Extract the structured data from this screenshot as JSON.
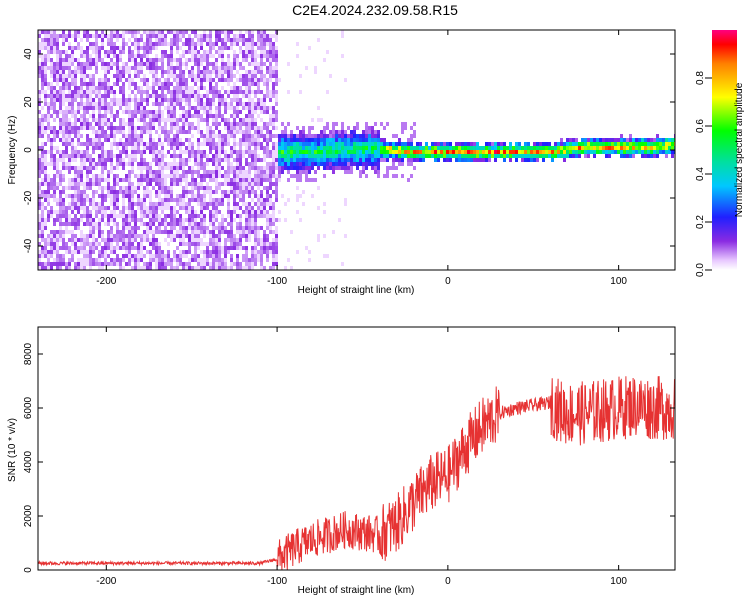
{
  "page_title": "C2E4.2024.232.09.58.R15",
  "chart_data": [
    {
      "type": "heatmap",
      "title": "C2E4.2024.232.09.58.R15",
      "xlabel": "Height of straight line (km)",
      "ylabel": "Frequency (Hz)",
      "xlim": [
        -240,
        133
      ],
      "ylim": [
        -50,
        50
      ],
      "xticks": [
        -200,
        -100,
        0,
        100
      ],
      "yticks": [
        -40,
        -20,
        0,
        20,
        40
      ],
      "colorbar": {
        "label": "Normalized spectral amplitude",
        "ticks": [
          0.0,
          0.2,
          0.4,
          0.6,
          0.8
        ],
        "range": [
          0,
          1
        ]
      },
      "ridge": {
        "x": [
          -100,
          -80,
          -60,
          -40,
          -20,
          0,
          20,
          40,
          60,
          70,
          80,
          100,
          120,
          133
        ],
        "freq": [
          0,
          0,
          1,
          1,
          0,
          0,
          0,
          0,
          0,
          1,
          2,
          2,
          2,
          3
        ]
      },
      "noise_region_x": [
        -240,
        -100
      ]
    },
    {
      "type": "line",
      "xlabel": "Height of straight line (km)",
      "ylabel": "SNR (10 * v/v)",
      "xlim": [
        -240,
        133
      ],
      "ylim": [
        0,
        9000
      ],
      "xticks": [
        -200,
        -100,
        0,
        100
      ],
      "yticks": [
        0,
        2000,
        4000,
        6000,
        8000
      ],
      "color": "#e63232",
      "series": [
        {
          "x": [
            -240,
            -200,
            -150,
            -110,
            -100,
            -90,
            -80,
            -70,
            -60,
            -50,
            -40,
            -30,
            -20,
            -10,
            0,
            10,
            20,
            30,
            40,
            50,
            60,
            65,
            70,
            80,
            90,
            100,
            110,
            120,
            133
          ],
          "y": [
            250,
            250,
            250,
            250,
            400,
            800,
            1100,
            1300,
            1500,
            1400,
            1300,
            1700,
            2500,
            3200,
            3500,
            4500,
            5300,
            5800,
            6000,
            6100,
            6200,
            5900,
            5800,
            5800,
            5900,
            6000,
            6100,
            6000,
            6000
          ]
        }
      ]
    }
  ]
}
